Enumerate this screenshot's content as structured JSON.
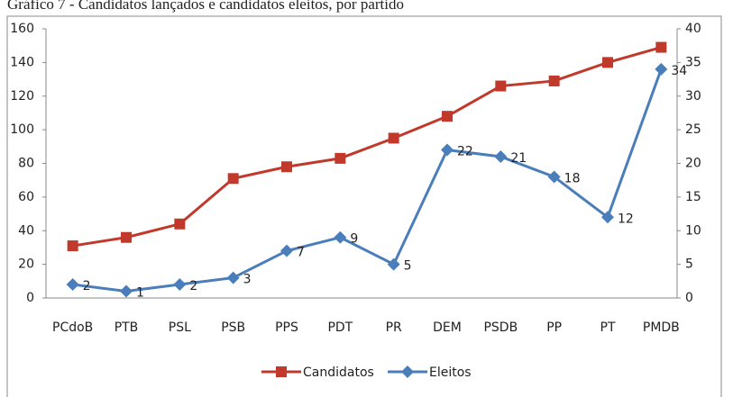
{
  "chart_data": {
    "type": "line",
    "title": "Gráfico 7 - Candidatos lançados e candidatos eleitos, por partido",
    "categories": [
      "PCdoB",
      "PTB",
      "PSL",
      "PSB",
      "PPS",
      "PDT",
      "PR",
      "DEM",
      "PSDB",
      "PP",
      "PT",
      "PMDB"
    ],
    "series": [
      {
        "name": "Candidatos",
        "color": "#c0392b",
        "marker": "square",
        "values": [
          31,
          36,
          44,
          71,
          78,
          83,
          95,
          108,
          126,
          129,
          140,
          149
        ]
      },
      {
        "name": "Eleitos",
        "color": "#4a7ebb",
        "marker": "diamond",
        "axis": "y2",
        "data_labels": true,
        "values": [
          2,
          1,
          2,
          3,
          7,
          9,
          5,
          22,
          21,
          18,
          12,
          34
        ]
      }
    ],
    "ylim": [
      0,
      160
    ],
    "yticks": [
      0,
      20,
      40,
      60,
      80,
      100,
      120,
      140,
      160
    ],
    "y2lim": [
      0,
      40
    ],
    "y2ticks": [
      0,
      5,
      10,
      15,
      20,
      25,
      30,
      35,
      40
    ],
    "grid": false,
    "legend": "bottom"
  }
}
